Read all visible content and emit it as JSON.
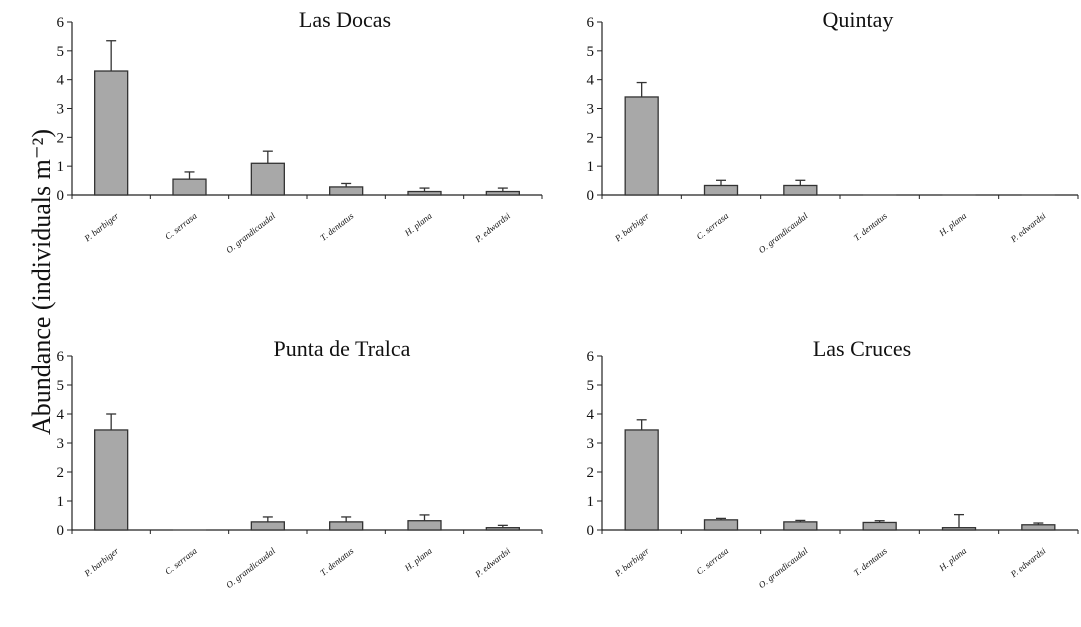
{
  "figure": {
    "ylabel": "Abundance (individuals m⁻²)"
  },
  "style": {
    "bar_fill": "#a8a8a8",
    "bar_stroke": "#333333",
    "axis_color": "#222222"
  },
  "chart_data": [
    {
      "type": "bar",
      "title": "Las Docas",
      "categories": [
        "P. barbiger",
        "C. serrasa",
        "O. grandicaudal",
        "T. dentatus",
        "H. plana",
        "P. edwardsi"
      ],
      "values": [
        4.3,
        0.55,
        1.1,
        0.28,
        0.12,
        0.12
      ],
      "errors": [
        1.05,
        0.25,
        0.42,
        0.12,
        0.12,
        0.12
      ],
      "ylim": [
        0,
        6
      ],
      "yticks": [
        0,
        1,
        2,
        3,
        4,
        5,
        6
      ],
      "grid": false
    },
    {
      "type": "bar",
      "title": "Quintay",
      "categories": [
        "P. barbiger",
        "C. serrasa",
        "O. grandicaudal",
        "T. dentatus",
        "H. plana",
        "P. edwardsi"
      ],
      "values": [
        3.4,
        0.33,
        0.33,
        0,
        0,
        0
      ],
      "errors": [
        0.5,
        0.18,
        0.18,
        0,
        0,
        0
      ],
      "ylim": [
        0,
        6
      ],
      "yticks": [
        0,
        1,
        2,
        3,
        4,
        5,
        6
      ],
      "grid": false
    },
    {
      "type": "bar",
      "title": "Punta de Tralca",
      "categories": [
        "P. barbiger",
        "C. serrasa",
        "O. grandicaudal",
        "T. dentatus",
        "H. plana",
        "P. edwardsi"
      ],
      "values": [
        3.45,
        0,
        0.28,
        0.28,
        0.32,
        0.08
      ],
      "errors": [
        0.55,
        0,
        0.17,
        0.17,
        0.2,
        0.08
      ],
      "ylim": [
        0,
        6
      ],
      "yticks": [
        0,
        1,
        2,
        3,
        4,
        5,
        6
      ],
      "grid": false
    },
    {
      "type": "bar",
      "title": "Las Cruces",
      "categories": [
        "P. barbiger",
        "C. serrasa",
        "O. grandicaudal",
        "T. dentatus",
        "H. plana",
        "P. edwardsi"
      ],
      "values": [
        3.45,
        0.35,
        0.28,
        0.26,
        0.08,
        0.18
      ],
      "errors": [
        0.35,
        0.05,
        0.05,
        0.06,
        0.45,
        0.06
      ],
      "ylim": [
        0,
        6
      ],
      "yticks": [
        0,
        1,
        2,
        3,
        4,
        5,
        6
      ],
      "grid": false
    }
  ]
}
